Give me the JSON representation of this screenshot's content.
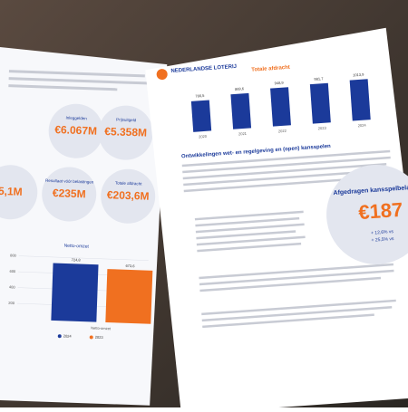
{
  "left_page": {
    "stats": [
      {
        "label": "Inleggelden",
        "value": "€6.067M"
      },
      {
        "label": "Prijsuitgeld",
        "value": "€5.358M"
      },
      {
        "value": "5,1M"
      },
      {
        "label": "Resultaat vóór belastingen",
        "value": "€235M"
      },
      {
        "label": "Totale afdracht",
        "value": "€203,6M"
      }
    ],
    "netto_chart": {
      "type": "bar",
      "title": "Netto-omzet",
      "x_label": "Netto-omzet",
      "series": [
        {
          "name": "2024",
          "color": "#1b3a9a",
          "values": [
            724.8
          ],
          "value_labels": [
            "724,8"
          ]
        },
        {
          "name": "2023",
          "color": "#f07020",
          "values": [
            673.6
          ],
          "value_labels": [
            "673,6"
          ]
        }
      ],
      "ylim": [
        0,
        800
      ],
      "yticks": [
        200,
        400,
        600,
        800
      ]
    }
  },
  "right_page": {
    "logo": "NEDERLANDSE LOTERIJ",
    "afdracht_chart": {
      "type": "bar",
      "title": "Totale afdracht",
      "categories": [
        "2020",
        "2021",
        "2022",
        "2023",
        "2024"
      ],
      "values": [
        766.5,
        869.6,
        948.9,
        981.7,
        1013.9
      ],
      "value_labels": [
        "766,5",
        "869,6",
        "948,9",
        "981,7",
        "1013,9"
      ],
      "color": "#1b3a9a"
    },
    "heading": "Ontwikkelingen wet- en regelgeving en (open) kansspelen",
    "callout": {
      "title": "Afgedragen kansspelbelasting",
      "value": "€187",
      "notes": [
        "+ 12,6% vs",
        "+ 25,5% vs"
      ]
    }
  }
}
